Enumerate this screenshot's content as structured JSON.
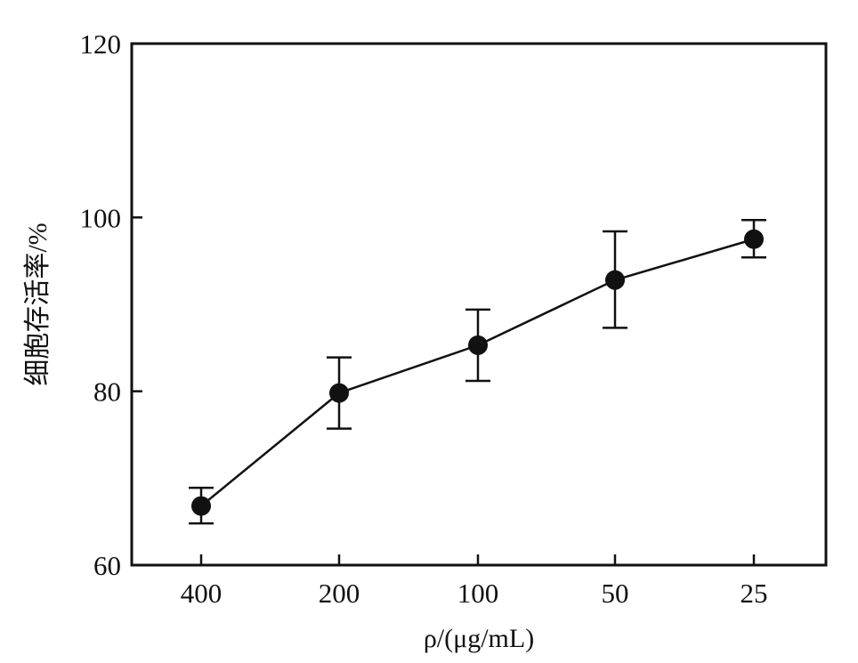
{
  "chart_data": {
    "type": "line",
    "title": "",
    "xlabel": "ρ/(μg/mL)",
    "ylabel": "细胞存活率/%",
    "categories": [
      "400",
      "200",
      "100",
      "50",
      "25"
    ],
    "yticks": [
      60,
      80,
      100,
      120
    ],
    "ylim": [
      60,
      120
    ],
    "grid": false,
    "legend": "none",
    "series": [
      {
        "values": [
          66.8,
          79.8,
          85.3,
          92.8,
          97.5
        ],
        "error_upper": [
          68.9,
          83.9,
          89.4,
          98.4,
          99.7
        ],
        "error_lower": [
          64.8,
          75.7,
          81.2,
          87.3,
          95.4
        ]
      }
    ],
    "colors": {
      "line": "#111111",
      "marker": "#111111",
      "axis": "#111111"
    }
  }
}
